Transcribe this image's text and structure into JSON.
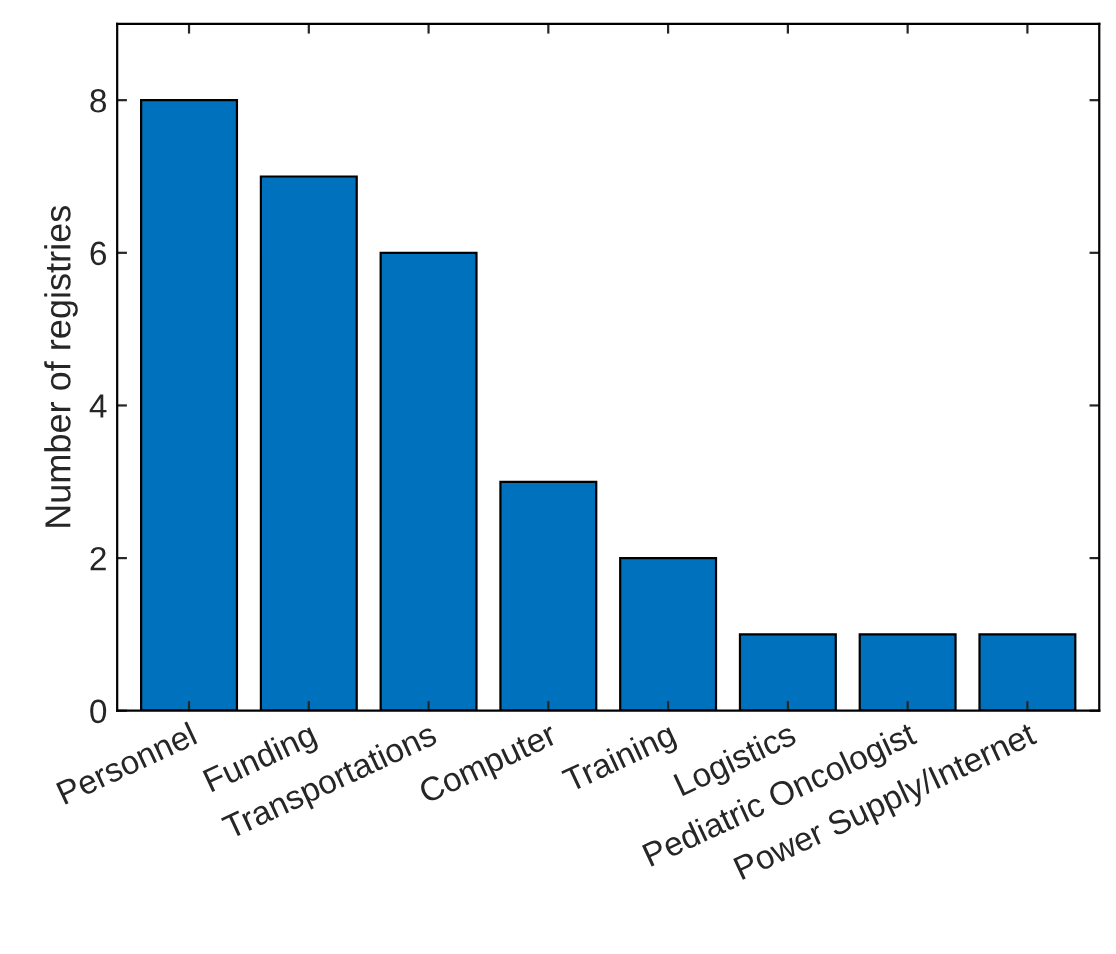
{
  "chart_data": {
    "type": "bar",
    "ylabel": "Number of registries",
    "categories": [
      "Personnel",
      "Funding",
      "Transportations",
      "Computer",
      "Training",
      "Logistics",
      "Pediatric Oncologist",
      "Power Supply/Internet"
    ],
    "values": [
      8,
      7,
      6,
      3,
      2,
      1,
      1,
      1
    ],
    "color": "#0072bd",
    "ylim": [
      0,
      9
    ],
    "yticks": [
      0,
      2,
      4,
      6,
      8
    ],
    "grid": false
  }
}
